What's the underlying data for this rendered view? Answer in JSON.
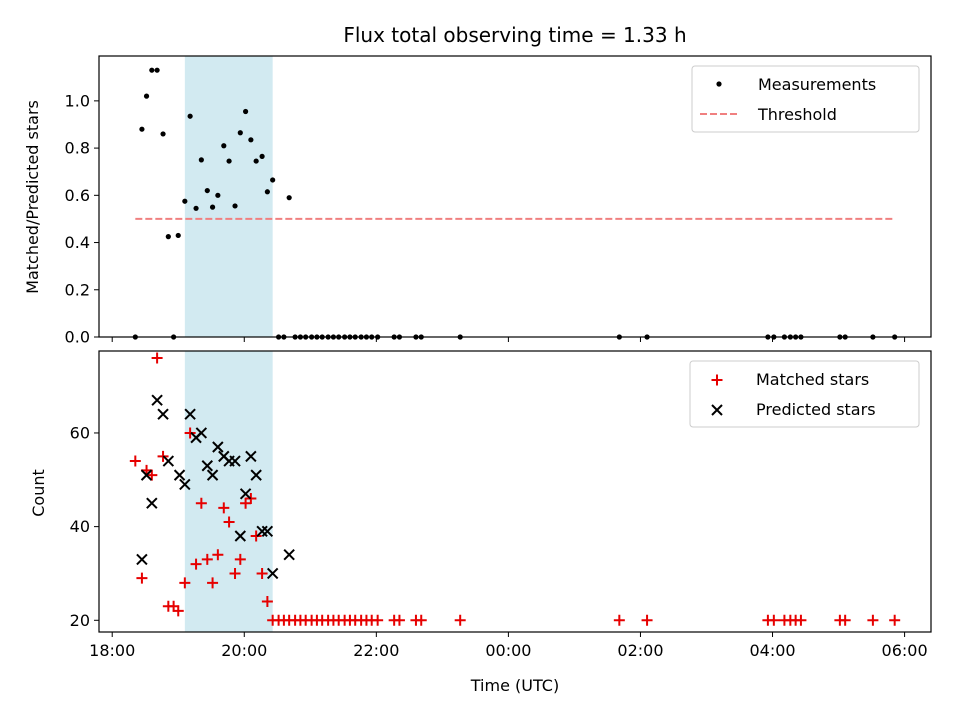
{
  "chart_data": {
    "type": "scatter",
    "title": "Flux total observing time = 1.33 h",
    "xlabel": "Time (UTC)",
    "x_unit": "hours since 18:00 UTC",
    "xlim": [
      -0.2,
      12.4
    ],
    "xticks": [
      {
        "value": 0,
        "label": "18:00"
      },
      {
        "value": 2,
        "label": "20:00"
      },
      {
        "value": 4,
        "label": "22:00"
      },
      {
        "value": 6,
        "label": "00:00"
      },
      {
        "value": 8,
        "label": "02:00"
      },
      {
        "value": 10,
        "label": "04:00"
      },
      {
        "value": 12,
        "label": "06:00"
      }
    ],
    "highlight_span": {
      "x_start": 1.1,
      "x_end": 2.43,
      "color": "#add8e6"
    },
    "top": {
      "ylabel": "Matched/Predicted stars",
      "ylim": [
        0,
        1.19
      ],
      "yticks": [
        0,
        0.2,
        0.4,
        0.6,
        0.8,
        1.0
      ],
      "ytick_labels": [
        "0.0",
        "0.2",
        "0.4",
        "0.6",
        "0.8",
        "1.0"
      ],
      "threshold": {
        "value": 0.5,
        "x_start": 0.35,
        "x_end": 11.85,
        "color": "#f08080"
      },
      "legend": [
        "Measurements",
        "Threshold"
      ],
      "measurements": [
        [
          0.35,
          0
        ],
        [
          0.45,
          0.88
        ],
        [
          0.52,
          1.02
        ],
        [
          0.6,
          1.13
        ],
        [
          0.68,
          1.13
        ],
        [
          0.77,
          0.86
        ],
        [
          0.85,
          0.425
        ],
        [
          0.93,
          0
        ],
        [
          1.0,
          0.43
        ],
        [
          1.1,
          0.575
        ],
        [
          1.18,
          0.935
        ],
        [
          1.27,
          0.545
        ],
        [
          1.35,
          0.75
        ],
        [
          1.44,
          0.62
        ],
        [
          1.52,
          0.55
        ],
        [
          1.6,
          0.6
        ],
        [
          1.69,
          0.81
        ],
        [
          1.77,
          0.745
        ],
        [
          1.86,
          0.555
        ],
        [
          1.94,
          0.865
        ],
        [
          2.02,
          0.955
        ],
        [
          2.1,
          0.835
        ],
        [
          2.18,
          0.745
        ],
        [
          2.27,
          0.765
        ],
        [
          2.35,
          0.615
        ],
        [
          2.43,
          0.665
        ],
        [
          2.52,
          0
        ],
        [
          2.6,
          0
        ],
        [
          2.68,
          0.59
        ],
        [
          2.77,
          0
        ],
        [
          2.85,
          0
        ],
        [
          2.93,
          0
        ],
        [
          3.02,
          0
        ],
        [
          3.1,
          0
        ],
        [
          3.18,
          0
        ],
        [
          3.27,
          0
        ],
        [
          3.35,
          0
        ],
        [
          3.43,
          0
        ],
        [
          3.52,
          0
        ],
        [
          3.6,
          0
        ],
        [
          3.68,
          0
        ],
        [
          3.77,
          0
        ],
        [
          3.85,
          0
        ],
        [
          3.93,
          0
        ],
        [
          4.02,
          0
        ],
        [
          4.27,
          0
        ],
        [
          4.35,
          0
        ],
        [
          4.6,
          0
        ],
        [
          4.68,
          0
        ],
        [
          5.27,
          0
        ],
        [
          7.68,
          0
        ],
        [
          8.1,
          0
        ],
        [
          9.93,
          0
        ],
        [
          10.02,
          0
        ],
        [
          10.18,
          0
        ],
        [
          10.27,
          0
        ],
        [
          10.35,
          0
        ],
        [
          10.43,
          0
        ],
        [
          11.02,
          0
        ],
        [
          11.1,
          0
        ],
        [
          11.52,
          0
        ],
        [
          11.85,
          0
        ]
      ]
    },
    "bottom": {
      "ylabel": "Count",
      "ylim": [
        17.5,
        77.5
      ],
      "yticks": [
        20,
        40,
        60
      ],
      "ytick_labels": [
        "20",
        "40",
        "60"
      ],
      "legend": [
        "Matched stars",
        "Predicted stars"
      ],
      "matched": [
        [
          0.35,
          54
        ],
        [
          0.45,
          29
        ],
        [
          0.52,
          52
        ],
        [
          0.6,
          51
        ],
        [
          0.68,
          76
        ],
        [
          0.77,
          55
        ],
        [
          0.85,
          23
        ],
        [
          0.93,
          23
        ],
        [
          1.0,
          22
        ],
        [
          1.1,
          28
        ],
        [
          1.18,
          60
        ],
        [
          1.27,
          32
        ],
        [
          1.35,
          45
        ],
        [
          1.44,
          33
        ],
        [
          1.52,
          28
        ],
        [
          1.6,
          34
        ],
        [
          1.69,
          44
        ],
        [
          1.77,
          41
        ],
        [
          1.86,
          30
        ],
        [
          1.94,
          33
        ],
        [
          2.02,
          45
        ],
        [
          2.1,
          46
        ],
        [
          2.18,
          38
        ],
        [
          2.27,
          30
        ],
        [
          2.35,
          24
        ],
        [
          2.43,
          20
        ],
        [
          2.52,
          20
        ],
        [
          2.6,
          20
        ],
        [
          2.68,
          20
        ],
        [
          2.77,
          20
        ],
        [
          2.85,
          20
        ],
        [
          2.93,
          20
        ],
        [
          3.02,
          20
        ],
        [
          3.1,
          20
        ],
        [
          3.18,
          20
        ],
        [
          3.27,
          20
        ],
        [
          3.35,
          20
        ],
        [
          3.43,
          20
        ],
        [
          3.52,
          20
        ],
        [
          3.6,
          20
        ],
        [
          3.68,
          20
        ],
        [
          3.77,
          20
        ],
        [
          3.85,
          20
        ],
        [
          3.93,
          20
        ],
        [
          4.02,
          20
        ],
        [
          4.27,
          20
        ],
        [
          4.35,
          20
        ],
        [
          4.6,
          20
        ],
        [
          4.68,
          20
        ],
        [
          5.27,
          20
        ],
        [
          7.68,
          20
        ],
        [
          8.1,
          20
        ],
        [
          9.93,
          20
        ],
        [
          10.02,
          20
        ],
        [
          10.18,
          20
        ],
        [
          10.27,
          20
        ],
        [
          10.35,
          20
        ],
        [
          10.43,
          20
        ],
        [
          11.02,
          20
        ],
        [
          11.1,
          20
        ],
        [
          11.52,
          20
        ],
        [
          11.85,
          20
        ]
      ],
      "predicted": [
        [
          0.45,
          33
        ],
        [
          0.52,
          51
        ],
        [
          0.6,
          45
        ],
        [
          0.68,
          67
        ],
        [
          0.77,
          64
        ],
        [
          0.85,
          54
        ],
        [
          1.02,
          51
        ],
        [
          1.1,
          49
        ],
        [
          1.18,
          64
        ],
        [
          1.27,
          59
        ],
        [
          1.35,
          60
        ],
        [
          1.44,
          53
        ],
        [
          1.52,
          51
        ],
        [
          1.6,
          57
        ],
        [
          1.69,
          55
        ],
        [
          1.77,
          54
        ],
        [
          1.86,
          54
        ],
        [
          1.94,
          38
        ],
        [
          2.02,
          47
        ],
        [
          2.1,
          55
        ],
        [
          2.18,
          51
        ],
        [
          2.27,
          39
        ],
        [
          2.35,
          39
        ],
        [
          2.43,
          30
        ],
        [
          2.68,
          34
        ]
      ]
    }
  }
}
